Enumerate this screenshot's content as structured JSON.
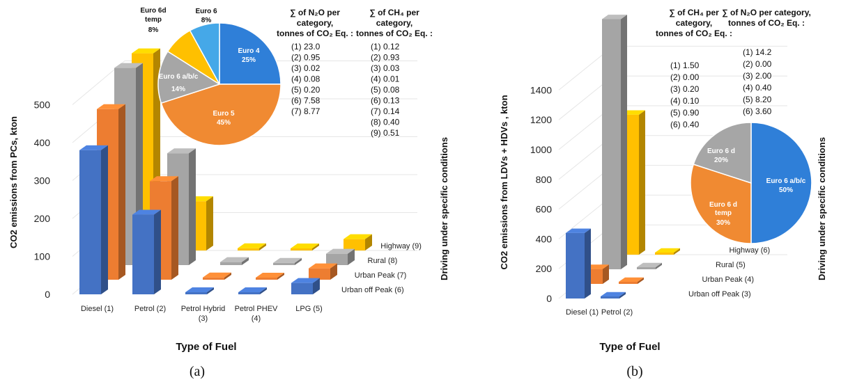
{
  "chart_data": [
    {
      "type": "bar",
      "panel_label": "(a)",
      "ylabel": "CO2 emissions from PCs, kton",
      "xlabel": "Type of Fuel",
      "zlabel": "Driving under specific conditions",
      "ylim": [
        0,
        500
      ],
      "yticks": [
        "0",
        "100",
        "200",
        "300",
        "400",
        "500"
      ],
      "categories": [
        "Diesel (1)",
        "Petrol (2)",
        "Petrol Hybrid (3)",
        "Petrol PHEV (4)",
        "LPG (5)"
      ],
      "series": [
        {
          "name": "Urban off Peak (6)",
          "color": "#4472c4",
          "values": [
            380,
            210,
            5,
            3,
            30
          ]
        },
        {
          "name": "Urban Peak (7)",
          "color": "#ed7d31",
          "values": [
            450,
            260,
            6,
            4,
            30
          ]
        },
        {
          "name": "Rural (8)",
          "color": "#a5a5a5",
          "values": [
            520,
            295,
            8,
            6,
            30
          ]
        },
        {
          "name": "Highway (9)",
          "color": "#ffc000",
          "values": [
            520,
            130,
            6,
            5,
            30
          ]
        }
      ],
      "pie": {
        "slices": [
          {
            "label": "Euro 4",
            "pct": "25%",
            "value": 25,
            "color": "#2f7fd8"
          },
          {
            "label": "Euro 5",
            "pct": "45%",
            "value": 45,
            "color": "#f08a32"
          },
          {
            "label": "Euro 6 a/b/c",
            "pct": "14%",
            "value": 14,
            "color": "#a6a6a6"
          },
          {
            "label": "Euro 6d temp",
            "pct": "8%",
            "value": 8,
            "color": "#ffc000"
          },
          {
            "label": "Euro 6",
            "pct": "8%",
            "value": 8,
            "color": "#45a8e8"
          }
        ]
      },
      "tables": [
        {
          "header": [
            "∑ of N₂O per",
            "category,",
            "tonnes of CO₂ Eq. :"
          ],
          "rows": [
            "(1) 23.0",
            "(2) 0.95",
            "(3) 0.02",
            "(4) 0.08",
            "(5) 0.20",
            "(6) 7.58",
            "(7) 8.77"
          ]
        },
        {
          "header": [
            "∑ of CH₄ per",
            "category,",
            "tonnes of CO₂ Eq. :"
          ],
          "rows": [
            "(1) 0.12",
            "(2) 0.93",
            "(3) 0.03",
            "(4) 0.01",
            "(5) 0.08",
            "(6) 0.13",
            "(7) 0.14",
            "(8) 0.40",
            "(9) 0.51"
          ]
        }
      ]
    },
    {
      "type": "bar",
      "panel_label": "(b)",
      "ylabel": "CO2 emissions from LDVs + HDVs , kton",
      "xlabel": "Type of Fuel",
      "zlabel": "Driving under specific conditions",
      "ylim": [
        0,
        1600
      ],
      "yticks": [
        "0",
        "200",
        "400",
        "600",
        "800",
        "1000",
        "1200",
        "1400"
      ],
      "categories": [
        "Diesel (1)",
        "Petrol (2)"
      ],
      "series": [
        {
          "name": "Urban off Peak (3)",
          "color": "#4472c4",
          "values": [
            440,
            10
          ]
        },
        {
          "name": "Urban Peak (4)",
          "color": "#ed7d31",
          "values": [
            100,
            5
          ]
        },
        {
          "name": "Rural (5)",
          "color": "#a5a5a5",
          "values": [
            1680,
            5
          ]
        },
        {
          "name": "Highway (6)",
          "color": "#ffc000",
          "values": [
            940,
            5
          ]
        }
      ],
      "pie": {
        "slices": [
          {
            "label": "Euro 6 a/b/c",
            "pct": "50%",
            "value": 50,
            "color": "#2f7fd8"
          },
          {
            "label": "Euro 6 d temp",
            "pct": "30%",
            "value": 30,
            "color": "#f08a32"
          },
          {
            "label": "Euro 6 d",
            "pct": "20%",
            "value": 20,
            "color": "#a6a6a6"
          }
        ]
      },
      "tables": [
        {
          "header": [
            "∑ of CH₄ per",
            "category,",
            "tonnes of CO₂ Eq. :"
          ],
          "rows": [
            "(1) 1.50",
            "(2) 0.00",
            "(3) 0.20",
            "(4) 0.10",
            "(5) 0.90",
            "(6) 0.40"
          ]
        },
        {
          "header": [
            "∑ of N₂O per category,",
            "tonnes of CO₂ Eq. :"
          ],
          "rows": [
            "(1) 14.2",
            "(2) 0.00",
            "(3) 2.00",
            "(4) 0.40",
            "(5) 8.20",
            "(6) 3.60"
          ]
        }
      ]
    }
  ]
}
